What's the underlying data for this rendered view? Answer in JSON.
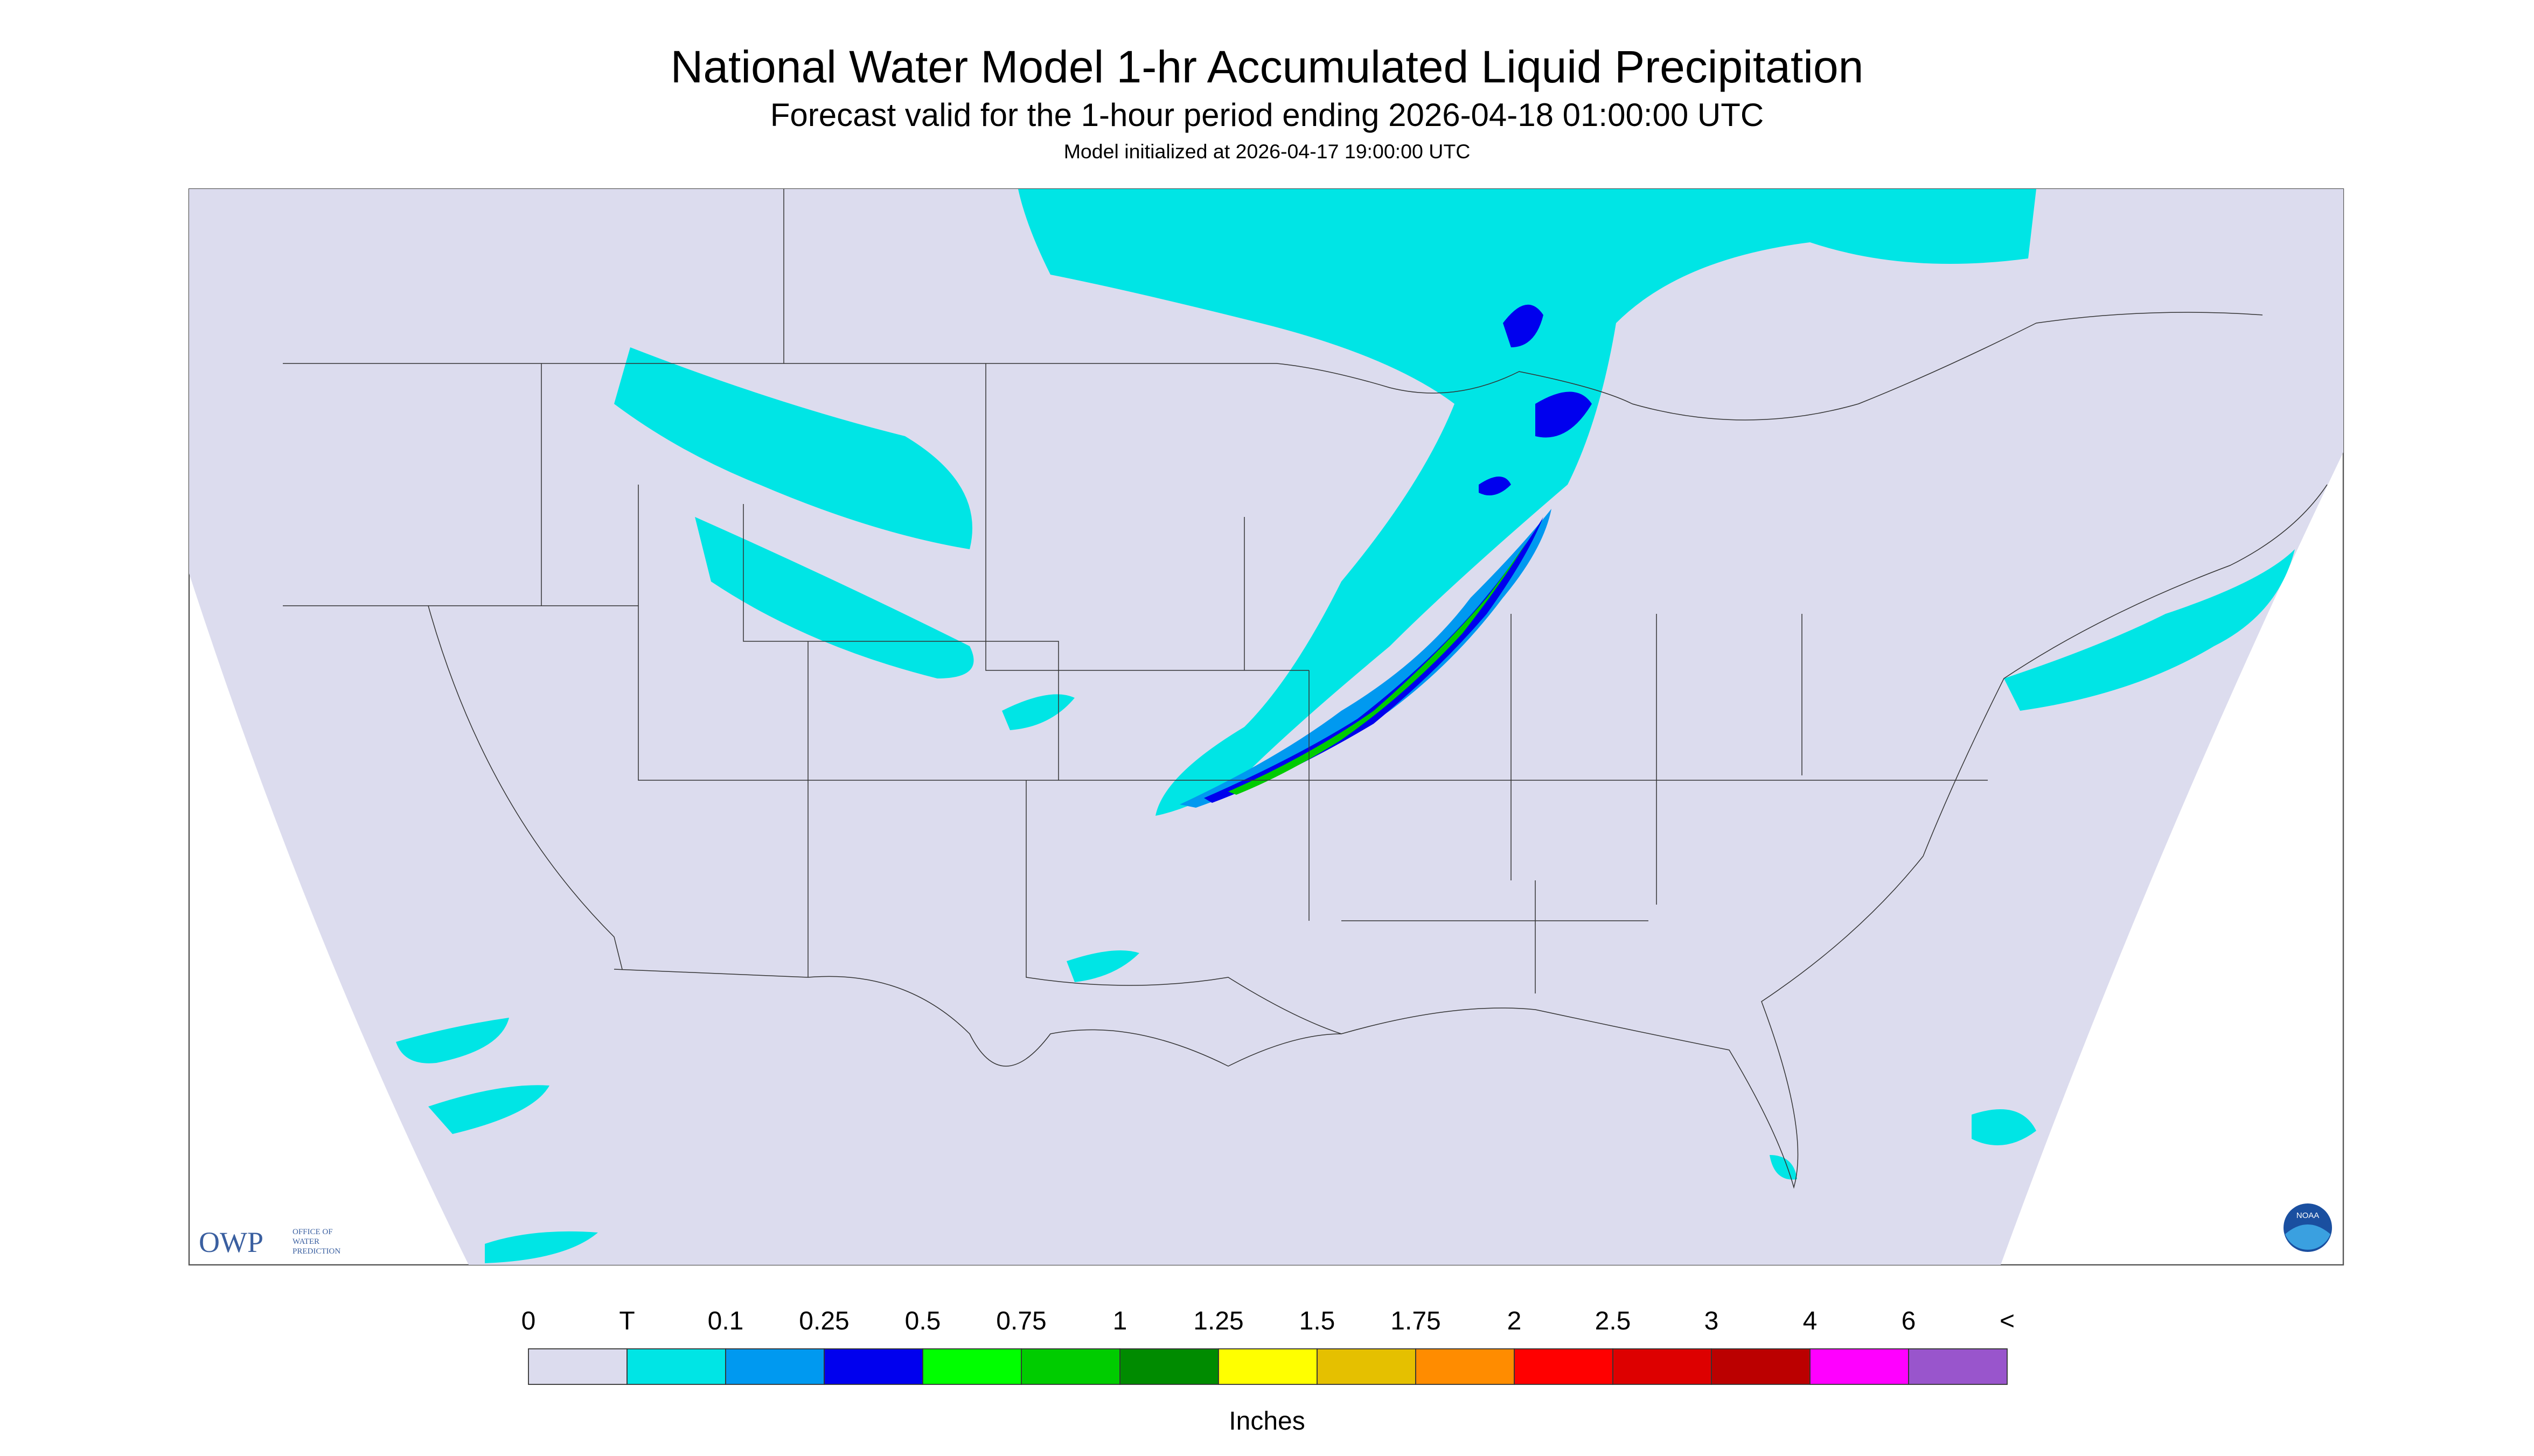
{
  "header": {
    "title": "National Water Model 1-hr Accumulated Liquid Precipitation",
    "subtitle": "Forecast valid for the 1-hour period ending 2026-04-18 01:00:00 UTC",
    "note": "Model initialized at 2026-04-17 19:00:00 UTC"
  },
  "logos": {
    "owp": "OWP",
    "owp_text": [
      "OFFICE OF",
      "WATER",
      "PREDICTION"
    ],
    "noaa": "NOAA"
  },
  "colorbar": {
    "labels": [
      "0",
      "T",
      "0.1",
      "0.25",
      "0.5",
      "0.75",
      "1",
      "1.25",
      "1.5",
      "1.75",
      "2",
      "2.5",
      "3",
      "4",
      "6",
      "<"
    ],
    "colors": [
      "#dcdcee",
      "#00e5e5",
      "#0099f0",
      "#0000ee",
      "#00ff00",
      "#00cc00",
      "#008b00",
      "#ffff00",
      "#e5c000",
      "#ff8c00",
      "#ff0000",
      "#dd0000",
      "#bb0000",
      "#ff00ff",
      "#9955cc"
    ],
    "unit": "Inches"
  }
}
